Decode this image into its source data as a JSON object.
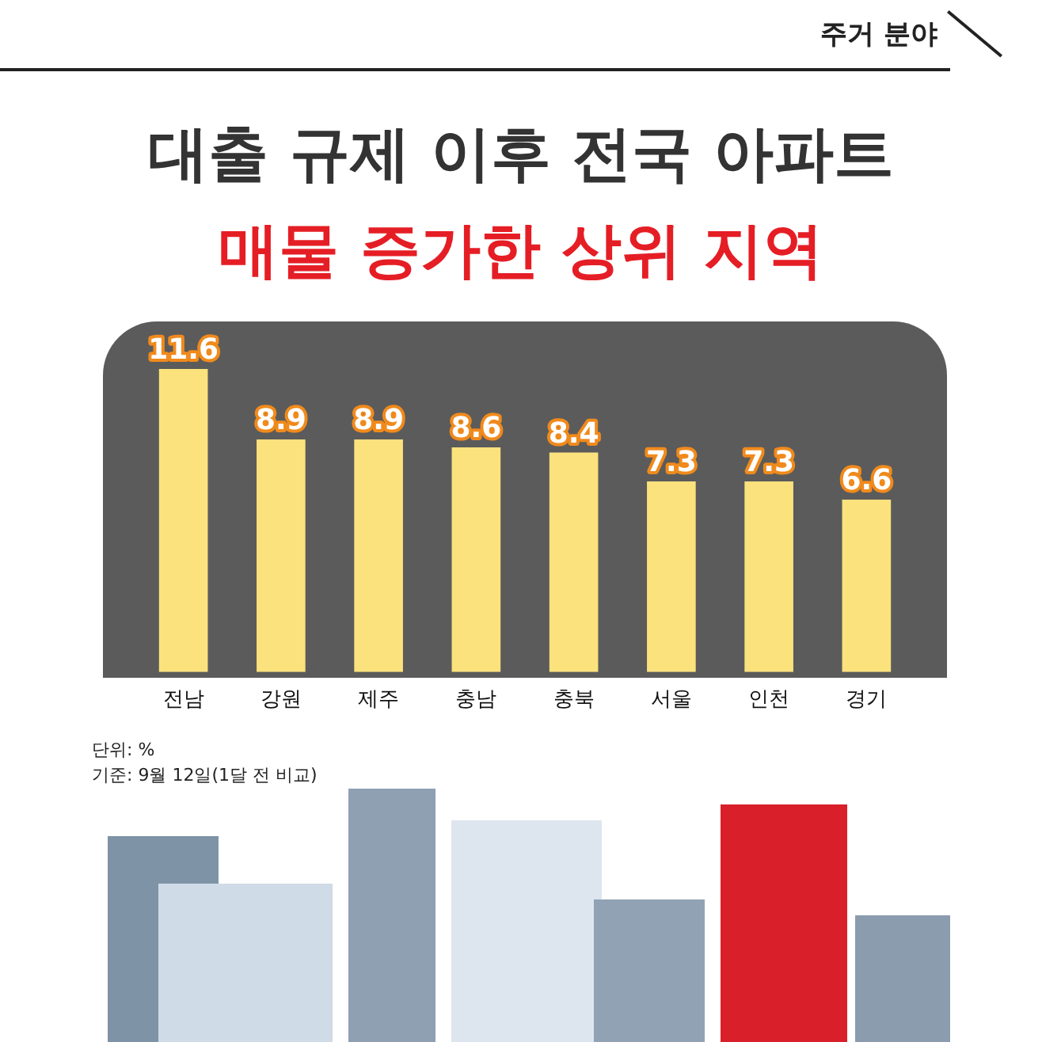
{
  "chart_data": {
    "type": "bar",
    "title": "대출 규제 이후 전국 아파트",
    "subtitle": "매물 증가한 상위 지역",
    "categories": [
      "전남",
      "강원",
      "제주",
      "충남",
      "충북",
      "서울",
      "인천",
      "경기"
    ],
    "values": [
      11.6,
      8.9,
      8.9,
      8.6,
      8.4,
      7.3,
      7.3,
      6.6
    ],
    "color": "#fbe27c",
    "data_labels": true,
    "grid": false,
    "legend": false,
    "annotations": [
      "주거 분야",
      "단위: %",
      "기준: 9월 12일(1달 전 비교)"
    ]
  }
}
